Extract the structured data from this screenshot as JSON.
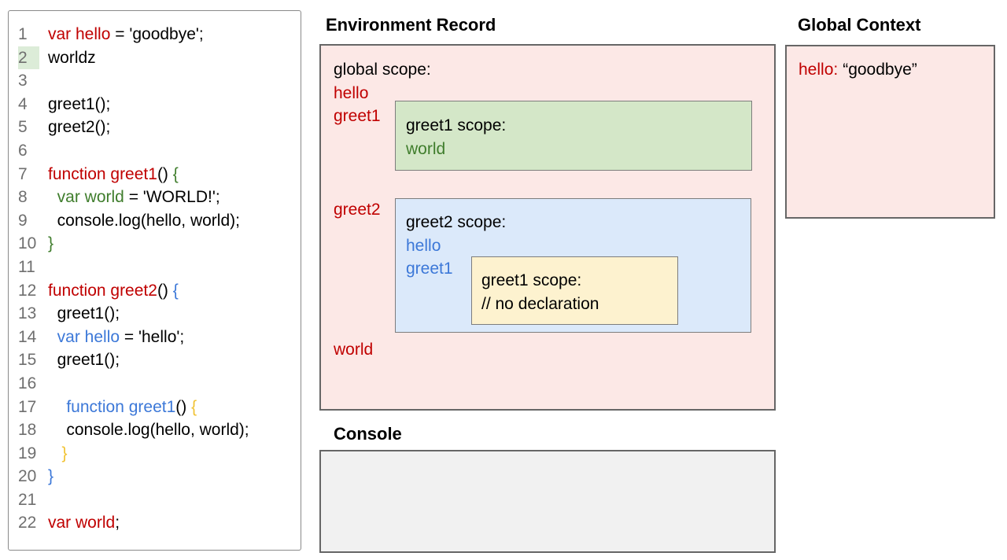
{
  "colors": {
    "red": "#c00000",
    "green": "#3f7d2c",
    "blue": "#3c78d8",
    "yellow": "#f1c232",
    "black": "#000000",
    "line_number_gray": "#6f6f6f",
    "highlight_green": "#dcecd8",
    "pink_fill": "#fce8e6",
    "green_fill": "#d4e7c8",
    "blue_fill": "#dbe9fa",
    "yellow_fill": "#fdf2cf",
    "console_fill": "#f1f1f1"
  },
  "code_panel": {
    "highlighted_line": 2,
    "lines": [
      {
        "n": 1,
        "highlight": false,
        "segments": [
          {
            "t": "var hello",
            "c": "red"
          },
          {
            "t": " = 'goodbye';",
            "c": "black"
          }
        ]
      },
      {
        "n": 2,
        "highlight": true,
        "segments": [
          {
            "t": "worldz",
            "c": "black"
          }
        ]
      },
      {
        "n": 3,
        "highlight": false,
        "segments": []
      },
      {
        "n": 4,
        "highlight": false,
        "segments": [
          {
            "t": "greet1();",
            "c": "black"
          }
        ]
      },
      {
        "n": 5,
        "highlight": false,
        "segments": [
          {
            "t": "greet2();",
            "c": "black"
          }
        ]
      },
      {
        "n": 6,
        "highlight": false,
        "segments": []
      },
      {
        "n": 7,
        "highlight": false,
        "segments": [
          {
            "t": "function greet1",
            "c": "red"
          },
          {
            "t": "() ",
            "c": "black"
          },
          {
            "t": "{",
            "c": "green"
          }
        ]
      },
      {
        "n": 8,
        "highlight": false,
        "segments": [
          {
            "t": "  ",
            "c": "black"
          },
          {
            "t": "var world",
            "c": "green"
          },
          {
            "t": " = 'WORLD!';",
            "c": "black"
          }
        ]
      },
      {
        "n": 9,
        "highlight": false,
        "segments": [
          {
            "t": "  console.log(hello, world);",
            "c": "black"
          }
        ]
      },
      {
        "n": 10,
        "highlight": false,
        "segments": [
          {
            "t": "}",
            "c": "green"
          }
        ]
      },
      {
        "n": 11,
        "highlight": false,
        "segments": []
      },
      {
        "n": 12,
        "highlight": false,
        "segments": [
          {
            "t": "function greet2",
            "c": "red"
          },
          {
            "t": "() ",
            "c": "black"
          },
          {
            "t": "{",
            "c": "blue"
          }
        ]
      },
      {
        "n": 13,
        "highlight": false,
        "segments": [
          {
            "t": "  greet1();",
            "c": "black"
          }
        ]
      },
      {
        "n": 14,
        "highlight": false,
        "segments": [
          {
            "t": "  ",
            "c": "black"
          },
          {
            "t": "var hello",
            "c": "blue"
          },
          {
            "t": " = 'hello';",
            "c": "black"
          }
        ]
      },
      {
        "n": 15,
        "highlight": false,
        "segments": [
          {
            "t": "  greet1();",
            "c": "black"
          }
        ]
      },
      {
        "n": 16,
        "highlight": false,
        "segments": []
      },
      {
        "n": 17,
        "highlight": false,
        "segments": [
          {
            "t": "    ",
            "c": "black"
          },
          {
            "t": "function greet1",
            "c": "blue"
          },
          {
            "t": "() ",
            "c": "black"
          },
          {
            "t": "{",
            "c": "yellow"
          }
        ]
      },
      {
        "n": 18,
        "highlight": false,
        "segments": [
          {
            "t": "    console.log(hello, world);",
            "c": "black"
          }
        ]
      },
      {
        "n": 19,
        "highlight": false,
        "segments": [
          {
            "t": "   ",
            "c": "black"
          },
          {
            "t": "}",
            "c": "yellow"
          }
        ]
      },
      {
        "n": 20,
        "highlight": false,
        "segments": [
          {
            "t": "}",
            "c": "blue"
          }
        ]
      },
      {
        "n": 21,
        "highlight": false,
        "segments": []
      },
      {
        "n": 22,
        "highlight": false,
        "segments": [
          {
            "t": "var world",
            "c": "red"
          },
          {
            "t": ";",
            "c": "black"
          }
        ]
      }
    ]
  },
  "environment_record": {
    "title": "Environment Record",
    "global_scope_label": "global scope:",
    "globals": [
      "hello",
      "greet1"
    ],
    "greet2_label": "greet2",
    "world_label": "world",
    "greet1_scope": {
      "label": "greet1 scope:",
      "vars": [
        "world"
      ]
    },
    "greet2_scope": {
      "label": "greet2 scope:",
      "vars": [
        "hello",
        "greet1"
      ]
    },
    "inner_greet1_scope": {
      "label": "greet1 scope:",
      "comment": "// no declaration"
    }
  },
  "global_context": {
    "title": "Global Context",
    "entry_key": "hello:",
    "entry_value": "“goodbye”"
  },
  "console_panel": {
    "title": "Console",
    "output": ""
  }
}
